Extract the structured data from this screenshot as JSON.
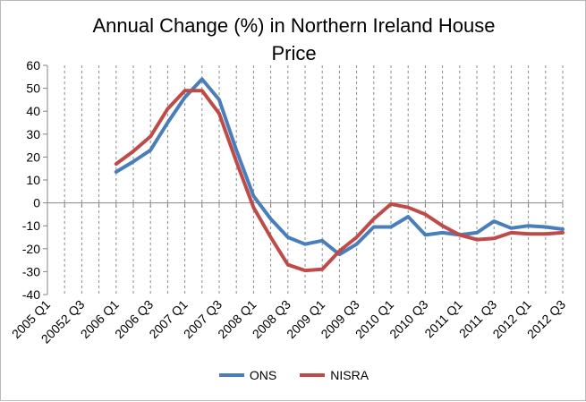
{
  "chart_data": {
    "type": "line",
    "title": "Annual Change (%) in Northern Ireland House Price",
    "title_lines": [
      "Annual Change (%) in Northern Ireland House",
      "Price"
    ],
    "xlabel": "",
    "ylabel": "",
    "ylim": [
      -40,
      60
    ],
    "yticks": [
      60,
      50,
      40,
      30,
      20,
      10,
      0,
      -10,
      -20,
      -30,
      -40
    ],
    "ytick_labels": [
      "60",
      "50",
      "40",
      "30",
      "20",
      "10",
      "0",
      "-10",
      "-20",
      "-30",
      "-40"
    ],
    "categories": [
      "2005 Q1",
      "2005 Q2",
      "20052 Q3",
      "2005 Q4",
      "2006 Q1",
      "2006 Q2",
      "2006 Q3",
      "2006 Q4",
      "2007 Q1",
      "2007 Q2",
      "2007 Q3",
      "2007 Q4",
      "2008 Q1",
      "2008 Q2",
      "2008 Q3",
      "2008 Q4",
      "2009 Q1",
      "2009 Q2",
      "2009 Q3",
      "2009 Q4",
      "2010 Q1",
      "2010 Q2",
      "2010 Q3",
      "2010 Q4",
      "2011 Q1",
      "2011 Q2",
      "2011 Q3",
      "2011 Q4",
      "2012 Q1",
      "2012 Q2",
      "2012 Q3"
    ],
    "x_tick_labels": [
      "2005 Q1",
      "",
      "20052 Q3",
      "",
      "2006 Q1",
      "",
      "2006 Q3",
      "",
      "2007 Q1",
      "",
      "2007 Q3",
      "",
      "2008 Q1",
      "",
      "2008 Q3",
      "",
      "2009 Q1",
      "",
      "2009 Q3",
      "",
      "2010 Q1",
      "",
      "2010 Q3",
      "",
      "2011 Q1",
      "",
      "2011 Q3",
      "",
      "2012 Q1",
      "",
      "2012 Q3"
    ],
    "series": [
      {
        "name": "ONS",
        "color": "#4A7EBB",
        "values": [
          null,
          null,
          null,
          null,
          13.5,
          18,
          23,
          35,
          46,
          54,
          45,
          23,
          3,
          -7,
          -15,
          -18,
          -16.5,
          -22.5,
          -18,
          -10.5,
          -10.5,
          -6,
          -14,
          -13,
          -14,
          -13,
          -8,
          -11,
          -10,
          -10.5,
          -11.5
        ]
      },
      {
        "name": "NISRA",
        "color": "#BE4B48",
        "values": [
          null,
          null,
          null,
          null,
          17,
          22.5,
          29,
          41,
          49,
          49,
          39,
          18,
          -2,
          -15,
          -27,
          -29.5,
          -29,
          -21,
          -15,
          -7,
          -0.5,
          -2,
          -5,
          -10,
          -14,
          -16,
          -15.5,
          -13,
          -13.5,
          -13.5,
          -13
        ]
      }
    ],
    "grid": "vertical",
    "legend_position": "bottom"
  }
}
